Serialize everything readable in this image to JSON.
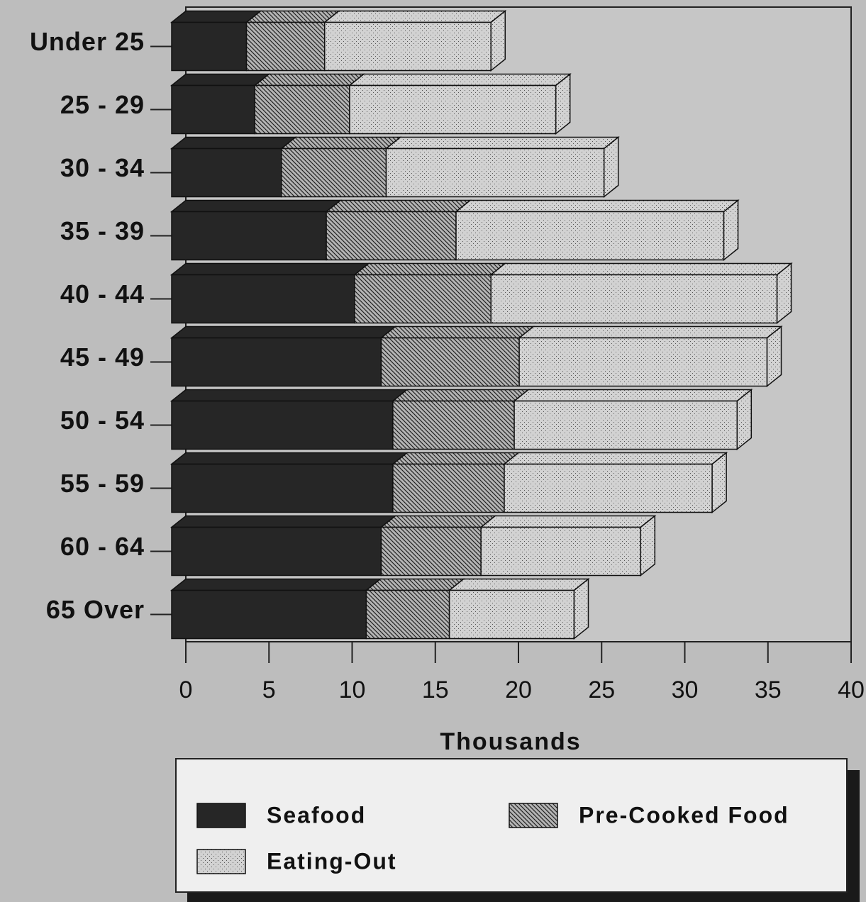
{
  "chart_data": {
    "type": "stacked-barh",
    "xlabel": "Thousands",
    "categories": [
      "Under 25",
      "25 - 29",
      "30 - 34",
      "35 - 39",
      "40 - 44",
      "45 - 49",
      "50 - 54",
      "55 - 59",
      "60 - 64",
      "65 Over"
    ],
    "series": [
      {
        "name": "Seafood",
        "color": "#262626",
        "values": [
          4.5,
          5.0,
          6.6,
          9.3,
          11.0,
          12.6,
          13.3,
          13.3,
          12.6,
          11.7
        ]
      },
      {
        "name": "Pre-Cooked Food",
        "color": "#b4b4b4",
        "values": [
          4.7,
          5.7,
          6.3,
          7.8,
          8.2,
          8.3,
          7.3,
          6.7,
          6.0,
          5.0
        ]
      },
      {
        "name": "Eating-Out",
        "color": "#d2d2d2",
        "values": [
          10.0,
          12.4,
          13.1,
          16.1,
          17.2,
          14.9,
          13.4,
          12.5,
          9.6,
          7.5
        ]
      }
    ],
    "xlim": [
      0,
      40
    ],
    "xticks": [
      0,
      5,
      10,
      15,
      20,
      25,
      30,
      35,
      40
    ],
    "legend": "bottom"
  }
}
